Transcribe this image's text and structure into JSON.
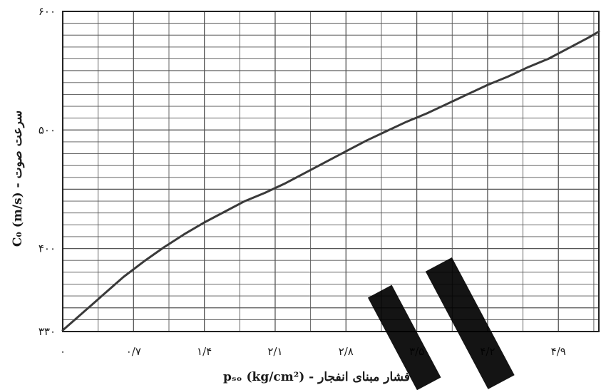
{
  "chart_data": {
    "type": "line",
    "title": "",
    "xlabel": "pₛₒ (kg/cm²) - فشار مبنای انفجار",
    "ylabel": "C₀ (m/s) - سرعت صوت",
    "xlim": [
      0,
      5.3
    ],
    "ylim": [
      330,
      600
    ],
    "x_ticks": [
      0,
      0.7,
      1.4,
      2.1,
      2.8,
      3.5,
      4.2,
      4.9
    ],
    "x_tick_labels": [
      "۰",
      "۰/۷",
      "۱/۴",
      "۲/۱",
      "۲/۸",
      "۳/۵",
      "۴/۲",
      "۴/۹"
    ],
    "y_ticks": [
      330,
      400,
      500,
      600
    ],
    "y_tick_labels": [
      "۳۳۰",
      "۴۰۰",
      "۵۰۰",
      "۶۰۰"
    ],
    "grid": true,
    "series": [
      {
        "color": "#3a3a3a",
        "x": [
          0,
          0.2,
          0.4,
          0.6,
          0.8,
          1.0,
          1.2,
          1.4,
          1.6,
          1.8,
          2.0,
          2.2,
          2.4,
          2.6,
          2.8,
          3.0,
          3.2,
          3.4,
          3.6,
          3.8,
          4.0,
          4.2,
          4.4,
          4.6,
          4.8,
          5.0,
          5.2,
          5.3
        ],
        "y": [
          331,
          346,
          361,
          376,
          389,
          401,
          412,
          422,
          431,
          440,
          447,
          455,
          464,
          473,
          482,
          491,
          499,
          507,
          514,
          522,
          530,
          538,
          545,
          553,
          560,
          569,
          578,
          583
        ]
      }
    ]
  }
}
